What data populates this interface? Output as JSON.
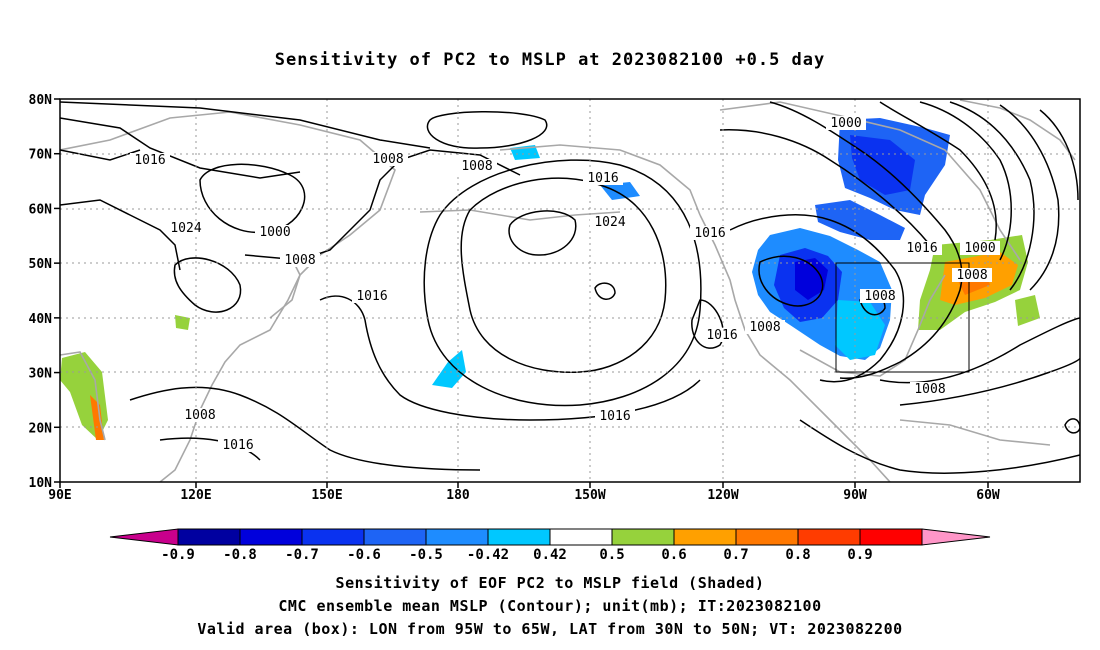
{
  "title": "Sensitivity of PC2 to MSLP at 2023082100 +0.5 day",
  "lat_labels": [
    "80N",
    "70N",
    "60N",
    "50N",
    "40N",
    "30N",
    "20N",
    "10N"
  ],
  "lon_labels": [
    "90E",
    "120E",
    "150E",
    "180",
    "150W",
    "120W",
    "90W",
    "60W"
  ],
  "contour_labels": [
    "1016",
    "1008",
    "1008",
    "1016",
    "1000",
    "1008",
    "1016",
    "1024",
    "1016",
    "1000",
    "1016",
    "1000",
    "1008",
    "1024",
    "1008",
    "1016",
    "1008",
    "1008",
    "1016",
    "1016",
    "1008"
  ],
  "colorbar": {
    "labels": [
      "-0.9",
      "-0.8",
      "-0.7",
      "-0.6",
      "-0.5",
      "-0.42",
      "0.42",
      "0.5",
      "0.6",
      "0.7",
      "0.8",
      "0.9"
    ],
    "colors": [
      "#c8008c",
      "#0000a0",
      "#0000dc",
      "#0a32f0",
      "#1e64f5",
      "#1e8cff",
      "#00c8ff",
      "#ffffff",
      "#96d23c",
      "#ffa000",
      "#ff7800",
      "#ff3c00",
      "#ff0000",
      "#ff96c8"
    ]
  },
  "valid_box": {
    "lon": [
      "95W",
      "65W"
    ],
    "lat": [
      "30N",
      "50N"
    ]
  },
  "captions": [
    "Sensitivity of EOF PC2 to MSLP field (Shaded)",
    "CMC ensemble mean MSLP (Contour); unit(mb); IT:2023082100",
    "Valid area (box): LON from 95W to 65W, LAT from 30N to 50N; VT: 2023082200"
  ]
}
